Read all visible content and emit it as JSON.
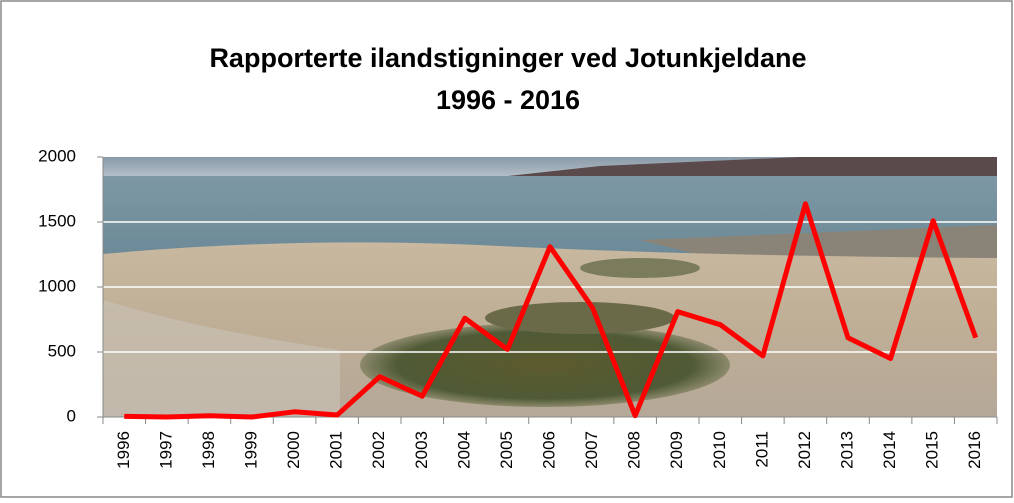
{
  "chart_data": {
    "type": "line",
    "title_lines": [
      "Rapporterte ilandstigninger ved  Jotunkjeldane",
      "1996 - 2016"
    ],
    "categories": [
      "1996",
      "1997",
      "1998",
      "1999",
      "2000",
      "2001",
      "2002",
      "2003",
      "2004",
      "2005",
      "2006",
      "2007",
      "2008",
      "2009",
      "2010",
      "2011",
      "2012",
      "2013",
      "2014",
      "2015",
      "2016"
    ],
    "values": [
      5,
      0,
      10,
      0,
      40,
      15,
      310,
      160,
      760,
      520,
      1310,
      840,
      10,
      810,
      710,
      470,
      1640,
      610,
      450,
      1510,
      610
    ],
    "color": "#ff0000",
    "ylim": [
      0,
      2000
    ],
    "yticks": [
      0,
      500,
      1000,
      1500,
      2000
    ],
    "grid": true
  }
}
